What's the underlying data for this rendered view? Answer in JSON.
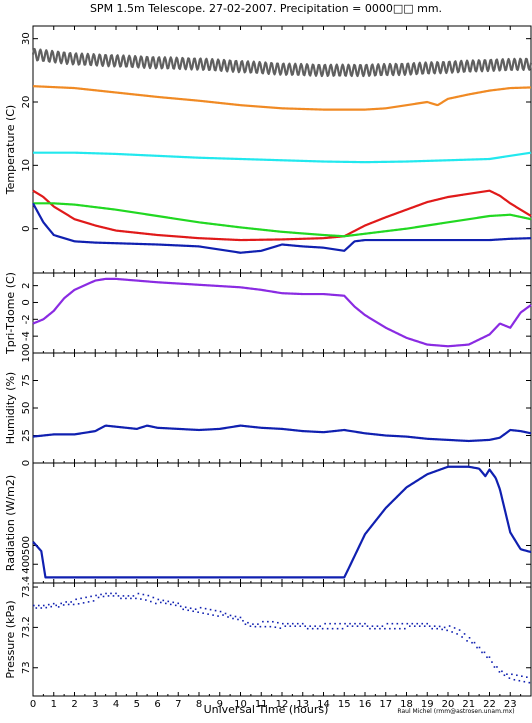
{
  "title": "SPM 1.5m Telescope. 27-02-2007. Precipitation = 0000□□ mm.",
  "credit": "Raul Michel (rmm@astrosen.unam.mx)",
  "xlabel": "Universal Time (hours)",
  "colors": {
    "gray": "#606060",
    "orange": "#f08a24",
    "cyan": "#22e8ee",
    "red": "#e01a1a",
    "green": "#22d822",
    "blue": "#1020b0",
    "purple": "#8a2be2"
  },
  "chart_data": [
    {
      "type": "line",
      "ylabel": "Temperature (C)",
      "xlim": [
        0,
        24
      ],
      "ylim": [
        -7,
        32
      ],
      "yticks": [
        0,
        10,
        20,
        30
      ],
      "xticks": [
        0,
        1,
        2,
        3,
        4,
        5,
        6,
        7,
        8,
        9,
        10,
        11,
        12,
        13,
        14,
        15,
        16,
        17,
        18,
        19,
        20,
        21,
        22,
        23
      ],
      "series": [
        {
          "color": "gray",
          "noisy": true,
          "x": [
            0,
            2,
            4,
            6,
            8,
            10,
            12,
            14,
            16,
            18,
            20,
            22,
            24
          ],
          "y": [
            27.5,
            26.8,
            26.5,
            26.2,
            26.0,
            25.6,
            25.2,
            25.0,
            25.0,
            25.2,
            25.5,
            25.8,
            26.0
          ]
        },
        {
          "color": "orange",
          "x": [
            0,
            2,
            4,
            6,
            8,
            10,
            12,
            14,
            15,
            16,
            17,
            18,
            19,
            19.5,
            20,
            21,
            22,
            23,
            24
          ],
          "y": [
            22.5,
            22.2,
            21.5,
            20.8,
            20.2,
            19.5,
            19.0,
            18.8,
            18.8,
            18.8,
            19.0,
            19.5,
            20.0,
            19.5,
            20.5,
            21.2,
            21.8,
            22.2,
            22.3
          ]
        },
        {
          "color": "cyan",
          "x": [
            0,
            2,
            4,
            6,
            8,
            10,
            12,
            14,
            16,
            18,
            20,
            22,
            23,
            24
          ],
          "y": [
            12.0,
            12.0,
            11.8,
            11.5,
            11.2,
            11.0,
            10.8,
            10.6,
            10.5,
            10.6,
            10.8,
            11.0,
            11.5,
            12.0
          ]
        },
        {
          "color": "red",
          "x": [
            0,
            0.5,
            1,
            2,
            3,
            4,
            6,
            8,
            10,
            12,
            14,
            15,
            16,
            17,
            18,
            19,
            20,
            21,
            22,
            22.5,
            23,
            24
          ],
          "y": [
            6.0,
            5.0,
            3.5,
            1.5,
            0.5,
            -0.3,
            -1.0,
            -1.5,
            -1.8,
            -1.7,
            -1.5,
            -1.2,
            0.5,
            1.8,
            3.0,
            4.2,
            5.0,
            5.5,
            6.0,
            5.2,
            4.0,
            2.0
          ]
        },
        {
          "color": "green",
          "x": [
            0,
            1,
            2,
            4,
            6,
            8,
            10,
            12,
            14,
            15,
            16,
            18,
            20,
            22,
            23,
            24
          ],
          "y": [
            4.0,
            4.0,
            3.8,
            3.0,
            2.0,
            1.0,
            0.2,
            -0.5,
            -1.0,
            -1.2,
            -0.8,
            0.0,
            1.0,
            2.0,
            2.2,
            1.5
          ]
        },
        {
          "color": "blue",
          "x": [
            0,
            0.5,
            1,
            1.5,
            2,
            3,
            4,
            6,
            8,
            10,
            11,
            12,
            13,
            14,
            15,
            15.5,
            16,
            18,
            20,
            22,
            23,
            24
          ],
          "y": [
            4.0,
            1.0,
            -1.0,
            -1.5,
            -2.0,
            -2.2,
            -2.3,
            -2.5,
            -2.8,
            -3.8,
            -3.5,
            -2.5,
            -2.8,
            -3.0,
            -3.5,
            -2.0,
            -1.8,
            -1.8,
            -1.8,
            -1.8,
            -1.6,
            -1.5
          ]
        }
      ]
    },
    {
      "type": "line",
      "ylabel": "Tpri-Tdome (C)",
      "xlim": [
        0,
        24
      ],
      "ylim": [
        -6,
        3.5
      ],
      "yticks": [
        -4,
        -2,
        0,
        2
      ],
      "series": [
        {
          "color": "purple",
          "x": [
            0,
            0.5,
            1,
            1.5,
            2,
            3,
            3.5,
            4,
            5,
            6,
            8,
            10,
            11,
            12,
            13,
            14,
            15,
            15.5,
            16,
            17,
            18,
            19,
            20,
            21,
            22,
            22.5,
            23,
            23.5,
            24
          ],
          "y": [
            -2.5,
            -2.0,
            -1.0,
            0.5,
            1.5,
            2.6,
            2.8,
            2.8,
            2.6,
            2.4,
            2.1,
            1.8,
            1.5,
            1.1,
            1.0,
            1.0,
            0.8,
            -0.5,
            -1.5,
            -3.0,
            -4.2,
            -5.0,
            -5.2,
            -5.0,
            -3.8,
            -2.5,
            -3.0,
            -1.2,
            -0.3
          ]
        }
      ]
    },
    {
      "type": "line",
      "ylabel": "Humidity (%)",
      "xlim": [
        0,
        24
      ],
      "ylim": [
        0,
        100
      ],
      "yticks": [
        0,
        25,
        50,
        75,
        100
      ],
      "series": [
        {
          "color": "blue",
          "x": [
            0,
            1,
            2,
            3,
            3.5,
            4,
            5,
            5.5,
            6,
            7,
            8,
            9,
            10,
            11,
            12,
            13,
            14,
            15,
            16,
            17,
            18,
            19,
            20,
            21,
            22,
            22.5,
            23,
            23.5,
            24
          ],
          "y": [
            24,
            26,
            26,
            29,
            34,
            33,
            31,
            34,
            32,
            31,
            30,
            31,
            34,
            32,
            31,
            29,
            28,
            30,
            27,
            25,
            24,
            22,
            21,
            20,
            21,
            23,
            30,
            29,
            27
          ]
        }
      ]
    },
    {
      "type": "line",
      "ylabel": "Radiation (W/m2)",
      "xlim": [
        0,
        24
      ],
      "ylim": [
        300,
        940
      ],
      "yticks": [
        400,
        500
      ],
      "series": [
        {
          "color": "blue",
          "x": [
            0,
            0.4,
            0.6,
            1,
            2,
            4,
            6,
            8,
            10,
            12,
            14,
            15,
            15.2,
            16,
            17,
            18,
            19,
            20,
            21,
            21.5,
            21.8,
            22,
            22.3,
            22.5,
            23,
            23.5,
            24
          ],
          "y": [
            520,
            470,
            330,
            330,
            330,
            330,
            330,
            330,
            330,
            330,
            330,
            330,
            375,
            560,
            700,
            810,
            880,
            920,
            920,
            910,
            870,
            905,
            860,
            800,
            570,
            480,
            465
          ]
        }
      ]
    },
    {
      "type": "scatter",
      "ylabel": "Pressure (kPa)",
      "xlim": [
        0,
        24
      ],
      "ylim": [
        72.86,
        73.42
      ],
      "yticks": [
        73,
        73.2,
        73.4
      ],
      "ytick_labels": [
        "73",
        "73.2",
        "73.4"
      ],
      "series": [
        {
          "color": "blue",
          "x": [
            0,
            0.5,
            1,
            1.5,
            2,
            2.5,
            3,
            3.5,
            4,
            4.5,
            5,
            5.5,
            6,
            6.5,
            7,
            7.5,
            8,
            8.5,
            9,
            9.5,
            10,
            10.5,
            11,
            11.5,
            12,
            12.5,
            13,
            13.5,
            14,
            14.5,
            15,
            15.5,
            16,
            16.5,
            17,
            17.5,
            18,
            18.5,
            19,
            19.5,
            20,
            20.5,
            21,
            21.5,
            22,
            22.5,
            23,
            23.5,
            24
          ],
          "y": [
            73.3,
            73.3,
            73.31,
            73.33,
            73.33,
            73.34,
            73.35,
            73.36,
            73.36,
            73.36,
            73.36,
            73.35,
            73.33,
            73.32,
            73.31,
            73.3,
            73.29,
            73.28,
            73.27,
            73.25,
            73.24,
            73.22,
            73.22,
            73.22,
            73.21,
            73.21,
            73.21,
            73.21,
            73.21,
            73.21,
            73.21,
            73.21,
            73.21,
            73.21,
            73.21,
            73.21,
            73.21,
            73.21,
            73.21,
            73.21,
            73.2,
            73.18,
            73.14,
            73.09,
            73.04,
            72.99,
            72.96,
            72.95,
            72.94
          ]
        }
      ]
    }
  ]
}
